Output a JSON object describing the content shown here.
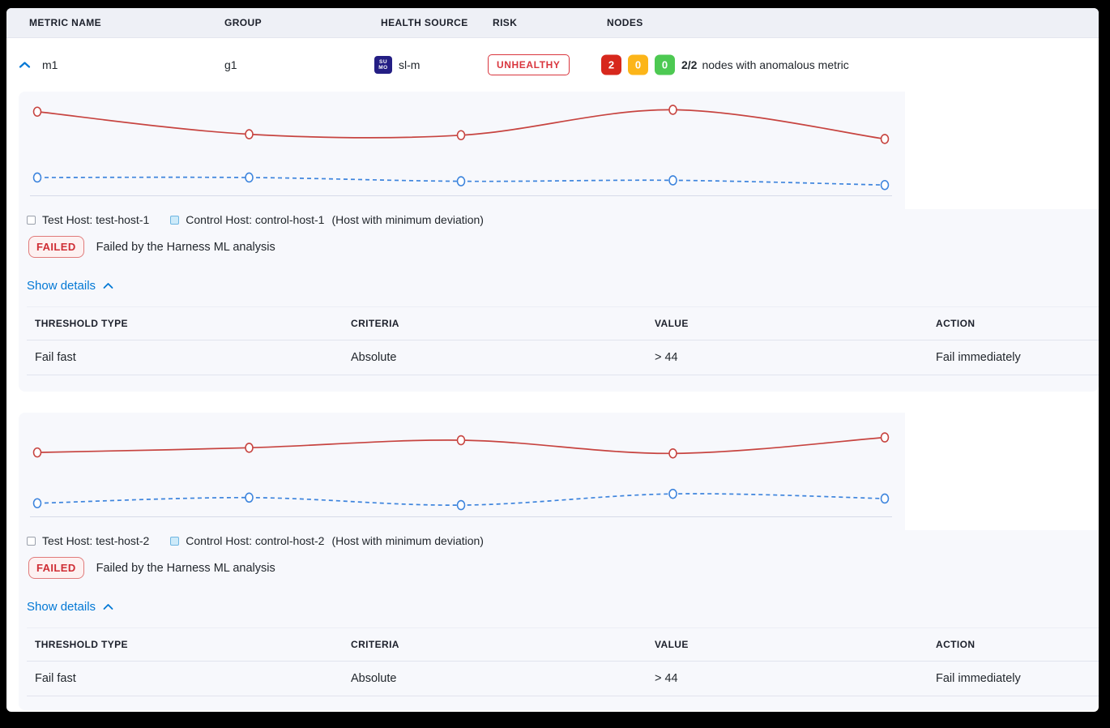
{
  "header": {
    "columns": [
      "METRIC NAME",
      "GROUP",
      "HEALTH SOURCE",
      "RISK",
      "NODES"
    ]
  },
  "metric_row": {
    "name": "m1",
    "group": "g1",
    "health_source": "sl-m",
    "health_source_icon_text": {
      "line1": "SU",
      "line2": "MO"
    },
    "risk": "UNHEALTHY",
    "nodes": {
      "counts": [
        {
          "value": "2",
          "color": "#d7281d"
        },
        {
          "value": "0",
          "color": "#fcb519"
        },
        {
          "value": "0",
          "color": "#4dc952"
        }
      ],
      "summary_bold": "2/2",
      "summary_text": "nodes with anomalous metric"
    }
  },
  "cards": [
    {
      "legend": {
        "test": "Test Host: test-host-1",
        "control": "Control Host: control-host-1",
        "note": "(Host with minimum deviation)"
      },
      "status_badge": "FAILED",
      "status_text": "Failed by the Harness ML analysis",
      "show_details": "Show details",
      "table": {
        "headers": [
          "THRESHOLD TYPE",
          "CRITERIA",
          "VALUE",
          "ACTION"
        ],
        "rows": [
          [
            "Fail fast",
            "Absolute",
            "> 44",
            "Fail immediately"
          ]
        ]
      }
    },
    {
      "legend": {
        "test": "Test Host: test-host-2",
        "control": "Control Host: control-host-2",
        "note": "(Host with minimum deviation)"
      },
      "status_badge": "FAILED",
      "status_text": "Failed by the Harness ML analysis",
      "show_details": "Show details",
      "table": {
        "headers": [
          "THRESHOLD TYPE",
          "CRITERIA",
          "VALUE",
          "ACTION"
        ],
        "rows": [
          [
            "Fail fast",
            "Absolute",
            "> 44",
            "Fail immediately"
          ]
        ]
      }
    }
  ],
  "chart_data": [
    {
      "type": "line",
      "x": [
        1,
        2,
        3,
        4,
        5
      ],
      "series": [
        {
          "name": "Test Host: test-host-1",
          "color": "#c74440",
          "style": "solid",
          "values": [
            89,
            65,
            64,
            91,
            60
          ]
        },
        {
          "name": "Control Host: control-host-1",
          "color": "#3d84dd",
          "style": "dashed",
          "values": [
            19,
            19,
            15,
            16,
            11
          ]
        }
      ],
      "title": "",
      "xlabel": "",
      "ylabel": "",
      "ylim": [
        0,
        100
      ],
      "grid": false,
      "legend_position": "below-chart"
    },
    {
      "type": "line",
      "x": [
        1,
        2,
        3,
        4,
        5
      ],
      "series": [
        {
          "name": "Test Host: test-host-2",
          "color": "#c74440",
          "style": "solid",
          "values": [
            68,
            73,
            81,
            67,
            84
          ]
        },
        {
          "name": "Control Host: control-host-2",
          "color": "#3d84dd",
          "style": "dashed",
          "values": [
            14,
            20,
            12,
            24,
            19
          ]
        }
      ],
      "title": "",
      "xlabel": "",
      "ylabel": "",
      "ylim": [
        0,
        100
      ],
      "grid": false,
      "legend_position": "below-chart"
    }
  ]
}
